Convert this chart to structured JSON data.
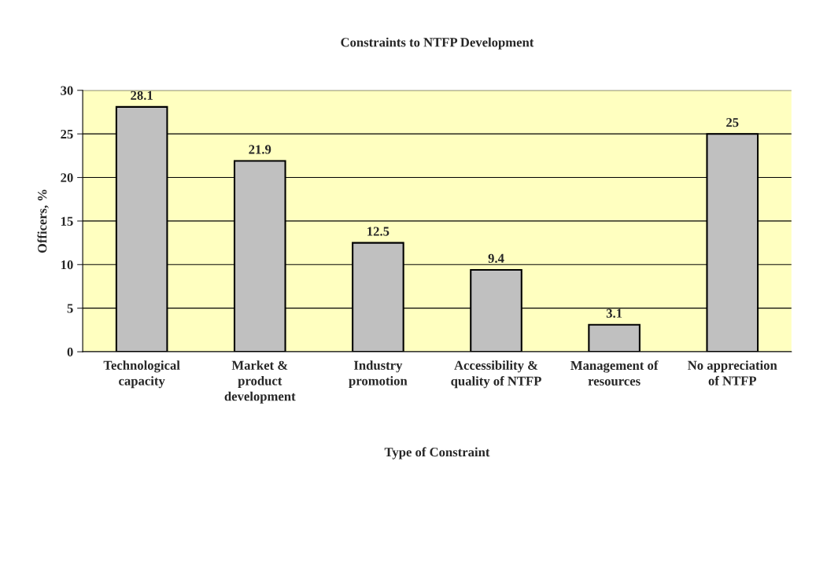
{
  "chart_data": {
    "type": "bar",
    "title": "Constraints to NTFP Development",
    "xlabel": "Type of Constraint",
    "ylabel": "Officers, %",
    "categories": [
      "Technological\ncapacity",
      "Market &\nproduct\ndevelopment",
      "Industry\npromotion",
      "Accessibility &\nquality of NTFP",
      "Management of\nresources",
      "No appreciation\nof NTFP"
    ],
    "values": [
      28.1,
      21.9,
      12.5,
      9.4,
      3.1,
      25
    ],
    "color": "#c0c0c0",
    "ylim": [
      0,
      30
    ],
    "yticks": [
      0,
      5,
      10,
      15,
      20,
      25,
      30
    ],
    "grid": "y",
    "data_labels": true
  }
}
